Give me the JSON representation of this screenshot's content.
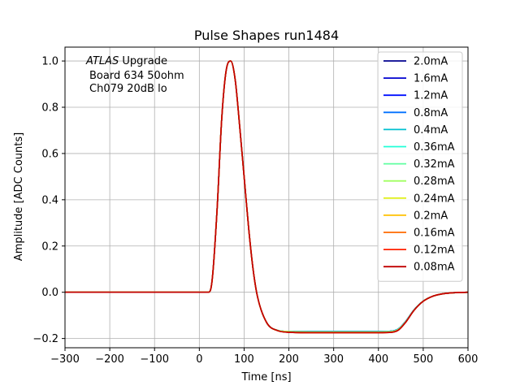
{
  "chart_data": {
    "type": "line",
    "title": "Pulse Shapes run1484",
    "xlabel": "Time [ns]",
    "ylabel": "Amplitude [ADC Counts]",
    "xlim": [
      -300,
      600
    ],
    "ylim": [
      -0.24,
      1.06
    ],
    "xticks": [
      -300,
      -200,
      -100,
      0,
      100,
      200,
      300,
      400,
      500,
      600
    ],
    "xtick_labels": [
      "−300",
      "−200",
      "−100",
      "0",
      "100",
      "200",
      "300",
      "400",
      "500",
      "600"
    ],
    "yticks": [
      -0.2,
      0.0,
      0.2,
      0.4,
      0.6,
      0.8,
      1.0
    ],
    "ytick_labels": [
      "−0.2",
      "0.0",
      "0.2",
      "0.4",
      "0.6",
      "0.8",
      "1.0"
    ],
    "grid": true,
    "legend_position": "top-right",
    "annotation": {
      "italic": "ATLAS",
      "line1_rest": " Upgrade",
      "line2": "Board 634 50ohm",
      "line3": "Ch079 20dB lo"
    },
    "x": [
      -300,
      -200,
      -100,
      0,
      20,
      25,
      30,
      40,
      50,
      60,
      70,
      80,
      90,
      100,
      110,
      120,
      130,
      150,
      175,
      200,
      250,
      300,
      350,
      400,
      430,
      445,
      460,
      480,
      500,
      520,
      540,
      560,
      580,
      600
    ],
    "series": [
      {
        "name": "2.0mA",
        "color": "#00008f",
        "y": [
          0,
          0,
          0,
          0,
          0.0,
          0.01,
          0.08,
          0.37,
          0.75,
          0.96,
          1.0,
          0.92,
          0.72,
          0.5,
          0.28,
          0.1,
          -0.02,
          -0.13,
          -0.165,
          -0.17,
          -0.17,
          -0.17,
          -0.17,
          -0.17,
          -0.168,
          -0.158,
          -0.128,
          -0.075,
          -0.038,
          -0.018,
          -0.008,
          -0.003,
          -0.001,
          0
        ]
      },
      {
        "name": "1.6mA",
        "color": "#0000cf",
        "y": [
          0,
          0,
          0,
          0,
          0.0,
          0.01,
          0.08,
          0.37,
          0.75,
          0.96,
          1.0,
          0.92,
          0.72,
          0.5,
          0.28,
          0.1,
          -0.02,
          -0.13,
          -0.165,
          -0.17,
          -0.17,
          -0.17,
          -0.17,
          -0.17,
          -0.168,
          -0.158,
          -0.128,
          -0.075,
          -0.038,
          -0.018,
          -0.008,
          -0.003,
          -0.001,
          0
        ]
      },
      {
        "name": "1.2mA",
        "color": "#0010ff",
        "y": [
          0,
          0,
          0,
          0,
          0.0,
          0.01,
          0.08,
          0.37,
          0.75,
          0.96,
          1.0,
          0.92,
          0.72,
          0.5,
          0.28,
          0.1,
          -0.02,
          -0.13,
          -0.165,
          -0.17,
          -0.17,
          -0.17,
          -0.17,
          -0.17,
          -0.168,
          -0.158,
          -0.128,
          -0.075,
          -0.038,
          -0.018,
          -0.008,
          -0.003,
          -0.001,
          0
        ]
      },
      {
        "name": "0.8mA",
        "color": "#0070ff",
        "y": [
          0,
          0,
          0,
          0,
          0.0,
          0.01,
          0.08,
          0.37,
          0.75,
          0.96,
          1.0,
          0.92,
          0.72,
          0.5,
          0.28,
          0.1,
          -0.02,
          -0.13,
          -0.165,
          -0.17,
          -0.17,
          -0.17,
          -0.17,
          -0.17,
          -0.168,
          -0.158,
          -0.128,
          -0.075,
          -0.038,
          -0.018,
          -0.008,
          -0.003,
          -0.001,
          0
        ]
      },
      {
        "name": "0.4mA",
        "color": "#00c0d0",
        "y": [
          0,
          0,
          0,
          0,
          0.0,
          0.01,
          0.08,
          0.37,
          0.75,
          0.96,
          1.0,
          0.92,
          0.72,
          0.5,
          0.28,
          0.1,
          -0.02,
          -0.13,
          -0.165,
          -0.17,
          -0.17,
          -0.17,
          -0.17,
          -0.17,
          -0.168,
          -0.158,
          -0.128,
          -0.075,
          -0.038,
          -0.018,
          -0.008,
          -0.003,
          -0.001,
          0
        ]
      },
      {
        "name": "0.36mA",
        "color": "#20ffd8",
        "y": [
          0,
          0,
          0,
          0,
          0.0,
          0.01,
          0.08,
          0.37,
          0.75,
          0.96,
          1.0,
          0.92,
          0.72,
          0.5,
          0.28,
          0.1,
          -0.02,
          -0.13,
          -0.165,
          -0.17,
          -0.172,
          -0.172,
          -0.172,
          -0.172,
          -0.17,
          -0.16,
          -0.13,
          -0.076,
          -0.038,
          -0.018,
          -0.008,
          -0.003,
          -0.001,
          0
        ]
      },
      {
        "name": "0.32mA",
        "color": "#60ffa0",
        "y": [
          0,
          0,
          0,
          0,
          0.0,
          0.01,
          0.08,
          0.37,
          0.75,
          0.96,
          1.0,
          0.92,
          0.72,
          0.5,
          0.28,
          0.1,
          -0.02,
          -0.13,
          -0.165,
          -0.17,
          -0.172,
          -0.172,
          -0.172,
          -0.172,
          -0.17,
          -0.16,
          -0.13,
          -0.076,
          -0.038,
          -0.018,
          -0.008,
          -0.003,
          -0.001,
          0
        ]
      },
      {
        "name": "0.28mA",
        "color": "#a0ff60",
        "y": [
          0,
          0,
          0,
          0,
          0.0,
          0.01,
          0.08,
          0.37,
          0.75,
          0.96,
          1.0,
          0.92,
          0.72,
          0.5,
          0.28,
          0.1,
          -0.02,
          -0.13,
          -0.165,
          -0.17,
          -0.172,
          -0.172,
          -0.172,
          -0.172,
          -0.17,
          -0.16,
          -0.13,
          -0.076,
          -0.038,
          -0.018,
          -0.008,
          -0.003,
          -0.001,
          0
        ]
      },
      {
        "name": "0.24mA",
        "color": "#e0f020",
        "y": [
          0,
          0,
          0,
          0,
          0.0,
          0.01,
          0.08,
          0.37,
          0.75,
          0.96,
          1.0,
          0.92,
          0.72,
          0.5,
          0.28,
          0.1,
          -0.02,
          -0.13,
          -0.166,
          -0.172,
          -0.174,
          -0.174,
          -0.174,
          -0.174,
          -0.172,
          -0.162,
          -0.131,
          -0.077,
          -0.039,
          -0.018,
          -0.008,
          -0.003,
          -0.001,
          0
        ]
      },
      {
        "name": "0.2mA",
        "color": "#ffc000",
        "y": [
          0,
          0,
          0,
          0,
          0.0,
          0.01,
          0.08,
          0.37,
          0.75,
          0.96,
          1.0,
          0.92,
          0.72,
          0.5,
          0.28,
          0.1,
          -0.02,
          -0.13,
          -0.166,
          -0.172,
          -0.174,
          -0.174,
          -0.174,
          -0.174,
          -0.172,
          -0.162,
          -0.131,
          -0.077,
          -0.039,
          -0.018,
          -0.008,
          -0.003,
          -0.001,
          0
        ]
      },
      {
        "name": "0.16mA",
        "color": "#ff6a00",
        "y": [
          0,
          0,
          0,
          0,
          0.0,
          0.01,
          0.08,
          0.37,
          0.75,
          0.96,
          1.0,
          0.92,
          0.72,
          0.5,
          0.28,
          0.1,
          -0.02,
          -0.13,
          -0.166,
          -0.173,
          -0.175,
          -0.175,
          -0.175,
          -0.175,
          -0.173,
          -0.163,
          -0.132,
          -0.077,
          -0.039,
          -0.018,
          -0.008,
          -0.003,
          -0.001,
          0
        ]
      },
      {
        "name": "0.12mA",
        "color": "#ff2000",
        "y": [
          0,
          0,
          0,
          0,
          0.0,
          0.01,
          0.08,
          0.37,
          0.75,
          0.96,
          1.0,
          0.92,
          0.72,
          0.5,
          0.28,
          0.1,
          -0.02,
          -0.13,
          -0.166,
          -0.173,
          -0.175,
          -0.175,
          -0.175,
          -0.175,
          -0.173,
          -0.163,
          -0.132,
          -0.077,
          -0.039,
          -0.018,
          -0.008,
          -0.003,
          -0.001,
          0
        ]
      },
      {
        "name": "0.08mA",
        "color": "#c00000",
        "y": [
          0,
          0,
          0,
          0,
          0.0,
          0.01,
          0.08,
          0.37,
          0.75,
          0.96,
          1.0,
          0.92,
          0.72,
          0.5,
          0.28,
          0.1,
          -0.02,
          -0.13,
          -0.166,
          -0.173,
          -0.175,
          -0.175,
          -0.175,
          -0.175,
          -0.173,
          -0.163,
          -0.132,
          -0.077,
          -0.039,
          -0.018,
          -0.008,
          -0.003,
          -0.001,
          0
        ]
      }
    ]
  }
}
